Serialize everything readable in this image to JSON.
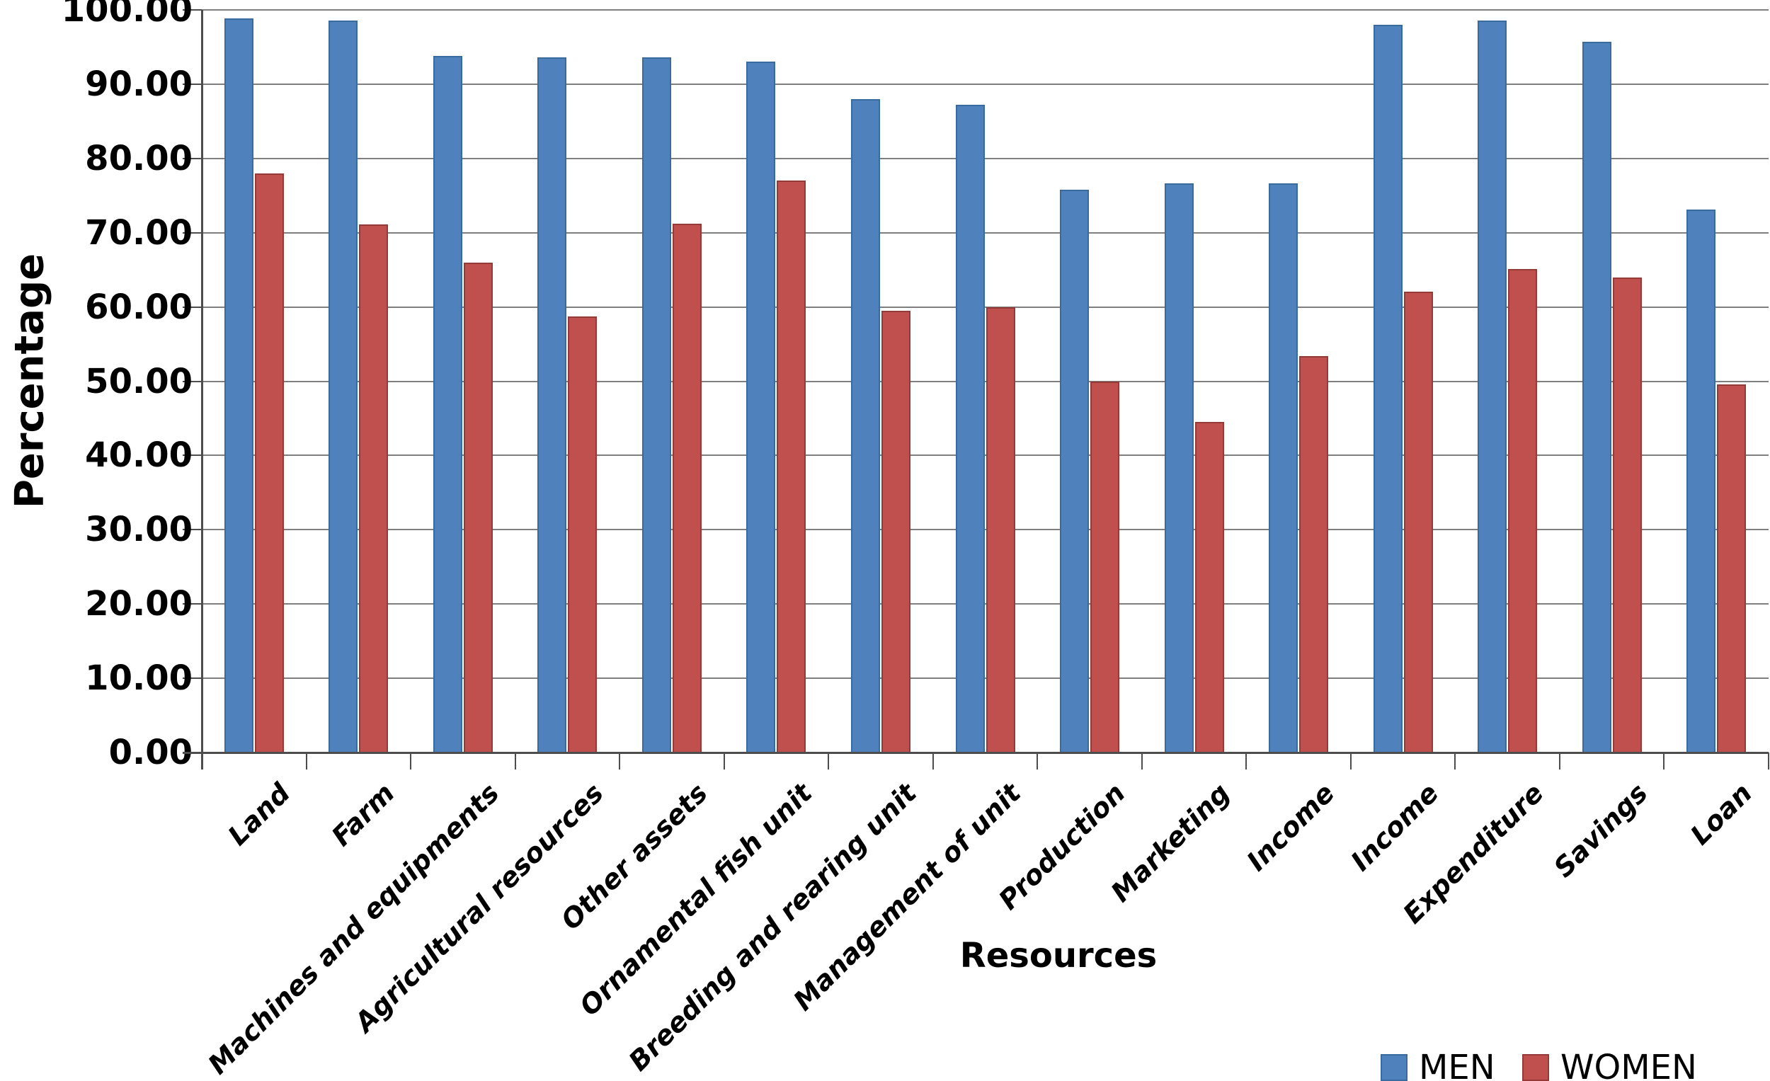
{
  "chart_data": {
    "type": "bar",
    "title": "",
    "xlabel": "Resources",
    "ylabel": "Percentage",
    "ylim": [
      0,
      100
    ],
    "ytick_step": 10,
    "yticks": [
      "0.00",
      "10.00",
      "20.00",
      "30.00",
      "40.00",
      "50.00",
      "60.00",
      "70.00",
      "80.00",
      "90.00",
      "100.00"
    ],
    "grid": true,
    "legend_position": "bottom-right",
    "categories": [
      "Land",
      "Farm",
      "Machines and equipments",
      "Agricultural resources",
      "Other assets",
      "Ornamental fish unit",
      "Breeding and rearing unit",
      "Management of unit",
      "Production",
      "Marketing",
      "Income",
      "Income",
      "Expenditure",
      "Savings",
      "Loan"
    ],
    "series": [
      {
        "name": "MEN",
        "color": "#4F81BD",
        "border_color": "#3A6B9E",
        "values": [
          98.9,
          98.6,
          93.8,
          93.6,
          93.6,
          93.0,
          88.0,
          87.2,
          75.8,
          76.6,
          76.6,
          98.0,
          98.6,
          95.7,
          73.1
        ]
      },
      {
        "name": "WOMEN",
        "color": "#C0504D",
        "border_color": "#943B38",
        "values": [
          78.0,
          71.1,
          66.0,
          58.7,
          71.2,
          77.0,
          59.5,
          60.0,
          50.0,
          44.5,
          53.4,
          62.1,
          65.1,
          64.0,
          49.6
        ]
      }
    ],
    "colors": {
      "gridline": "#7f7f7f",
      "axis": "#4d4d4d",
      "background": "#ffffff"
    }
  }
}
